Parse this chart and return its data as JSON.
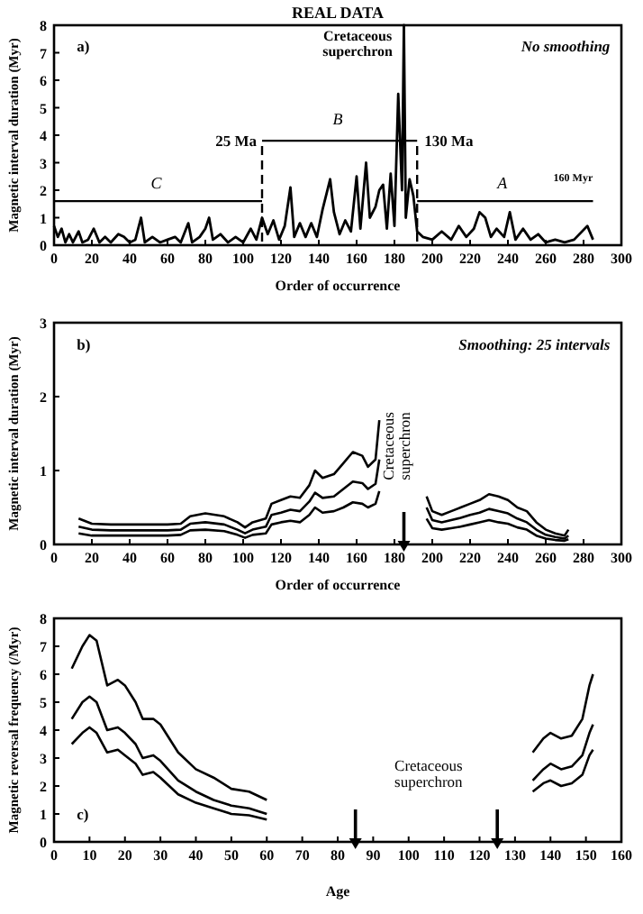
{
  "chart_data": [
    {
      "type": "line",
      "title": "REAL DATA",
      "xlabel": "Order of occurrence",
      "ylabel": "Magnetic interval duration (Myr)",
      "xlim": [
        0,
        300
      ],
      "xticks": [
        0,
        20,
        40,
        60,
        80,
        100,
        120,
        140,
        160,
        180,
        200,
        220,
        240,
        260,
        280,
        300
      ],
      "ylim": [
        0,
        8
      ],
      "yticks": [
        0,
        1,
        2,
        3,
        4,
        5,
        6,
        7,
        8
      ],
      "grid": false,
      "x": [
        0,
        2,
        4,
        6,
        8,
        10,
        13,
        15,
        18,
        21,
        24,
        27,
        30,
        34,
        37,
        40,
        43,
        46,
        48,
        52,
        56,
        60,
        64,
        67,
        71,
        73,
        77,
        80,
        82,
        84,
        88,
        92,
        96,
        100,
        104,
        107,
        110,
        113,
        116,
        119,
        122,
        125,
        127,
        130,
        133,
        136,
        139,
        142,
        146,
        148,
        151,
        154,
        157,
        160,
        162,
        165,
        167,
        170,
        172,
        174,
        176,
        178,
        180,
        182,
        184,
        185,
        186,
        188,
        190,
        192,
        195,
        200,
        205,
        210,
        214,
        218,
        222,
        225,
        228,
        231,
        234,
        238,
        241,
        244,
        248,
        252,
        256,
        260,
        265,
        270,
        275,
        282,
        285
      ],
      "series": [
        {
          "color": "#000000",
          "values": [
            0.7,
            0.3,
            0.6,
            0.1,
            0.4,
            0.1,
            0.5,
            0.1,
            0.2,
            0.6,
            0.1,
            0.3,
            0.1,
            0.4,
            0.3,
            0.1,
            0.2,
            1.0,
            0.1,
            0.3,
            0.1,
            0.2,
            0.3,
            0.1,
            0.8,
            0.1,
            0.3,
            0.6,
            1.0,
            0.2,
            0.4,
            0.1,
            0.3,
            0.1,
            0.6,
            0.2,
            1.0,
            0.4,
            0.9,
            0.2,
            0.7,
            2.1,
            0.3,
            0.8,
            0.3,
            0.8,
            0.3,
            1.3,
            2.4,
            1.2,
            0.4,
            0.9,
            0.5,
            2.5,
            0.6,
            3.0,
            1.0,
            1.4,
            2.0,
            2.2,
            0.6,
            2.6,
            0.7,
            5.5,
            2.0,
            8,
            1.0,
            2.4,
            1.8,
            0.5,
            0.3,
            0.2,
            0.5,
            0.2,
            0.7,
            0.3,
            0.6,
            1.2,
            1.0,
            0.3,
            0.6,
            0.3,
            1.2,
            0.2,
            0.6,
            0.2,
            0.4,
            0.1,
            0.2,
            0.1,
            0.2,
            0.7,
            0.2
          ]
        }
      ],
      "ref_lines": [
        {
          "axis": "x",
          "value": 110,
          "label": "25 Ma",
          "line_style": "dashed"
        },
        {
          "axis": "x",
          "value": 192,
          "label": "130 Ma",
          "line_style": "dashed"
        }
      ],
      "annotations": [
        "a)",
        "No smoothing",
        "C",
        "B",
        "A",
        "160 Myr",
        "Cretaceous superchron"
      ]
    },
    {
      "type": "line",
      "xlabel": "Order of occurrence",
      "ylabel": "Magnetic interval duration (Myr)",
      "xlim": [
        0,
        300
      ],
      "xticks": [
        0,
        20,
        40,
        60,
        80,
        100,
        120,
        140,
        160,
        180,
        200,
        220,
        240,
        260,
        280,
        300
      ],
      "ylim": [
        0,
        3
      ],
      "yticks": [
        0,
        1,
        2,
        3
      ],
      "grid": false,
      "x": [
        13,
        20,
        30,
        40,
        50,
        60,
        67,
        72,
        80,
        90,
        97,
        101,
        105,
        112,
        115,
        120,
        125,
        130,
        135,
        138,
        142,
        148,
        153,
        158,
        163,
        166,
        170,
        172,
        185,
        197,
        200,
        205,
        210,
        215,
        220,
        225,
        230,
        235,
        240,
        245,
        250,
        255,
        260,
        265,
        270,
        272
      ],
      "series": [
        {
          "color": "#000000",
          "values": [
            0.35,
            0.28,
            0.27,
            0.27,
            0.27,
            0.27,
            0.28,
            0.38,
            0.42,
            0.38,
            0.3,
            0.23,
            0.3,
            0.35,
            0.55,
            0.6,
            0.65,
            0.63,
            0.8,
            1.0,
            0.9,
            0.95,
            1.1,
            1.25,
            1.2,
            1.05,
            1.15,
            1.68,
            null,
            0.65,
            0.45,
            0.4,
            0.45,
            0.5,
            0.55,
            0.6,
            0.68,
            0.65,
            0.6,
            0.5,
            0.45,
            0.3,
            0.2,
            0.15,
            0.12,
            0.2
          ]
        },
        {
          "color": "#000000",
          "values": [
            0.24,
            0.2,
            0.19,
            0.19,
            0.19,
            0.19,
            0.2,
            0.28,
            0.3,
            0.27,
            0.2,
            0.15,
            0.2,
            0.24,
            0.4,
            0.43,
            0.47,
            0.45,
            0.58,
            0.7,
            0.63,
            0.65,
            0.75,
            0.85,
            0.83,
            0.75,
            0.82,
            1.15,
            null,
            0.5,
            0.33,
            0.3,
            0.33,
            0.36,
            0.4,
            0.43,
            0.48,
            0.45,
            0.42,
            0.35,
            0.3,
            0.2,
            0.13,
            0.1,
            0.08,
            0.12
          ]
        },
        {
          "color": "#000000",
          "values": [
            0.15,
            0.12,
            0.12,
            0.12,
            0.12,
            0.12,
            0.13,
            0.19,
            0.2,
            0.18,
            0.13,
            0.09,
            0.13,
            0.15,
            0.27,
            0.3,
            0.32,
            0.3,
            0.4,
            0.5,
            0.43,
            0.45,
            0.5,
            0.57,
            0.55,
            0.5,
            0.55,
            0.72,
            null,
            0.35,
            0.22,
            0.2,
            0.22,
            0.24,
            0.27,
            0.3,
            0.33,
            0.3,
            0.28,
            0.23,
            0.2,
            0.12,
            0.08,
            0.06,
            0.05,
            0.07
          ]
        }
      ],
      "ref_lines": [
        {
          "axis": "x",
          "value": 185
        }
      ],
      "annotations": [
        "b)",
        "Smoothing: 25 intervals",
        "Cretaceous superchron"
      ]
    },
    {
      "type": "line",
      "xlabel": "Age",
      "ylabel": "Magnetic reversal frequency (/Myr)",
      "xlim": [
        0,
        160
      ],
      "xticks": [
        0,
        10,
        20,
        30,
        40,
        50,
        60,
        70,
        80,
        90,
        100,
        110,
        120,
        130,
        140,
        150,
        160
      ],
      "ylim": [
        0,
        8
      ],
      "yticks": [
        0,
        1,
        2,
        3,
        4,
        5,
        6,
        7,
        8
      ],
      "grid": false,
      "x": [
        5,
        8,
        10,
        12,
        15,
        18,
        20,
        23,
        25,
        28,
        30,
        35,
        40,
        45,
        50,
        55,
        60,
        100,
        135,
        138,
        140,
        143,
        146,
        149,
        151,
        152
      ],
      "series": [
        {
          "color": "#000000",
          "values": [
            6.2,
            7.0,
            7.4,
            7.2,
            5.6,
            5.8,
            5.6,
            5.0,
            4.4,
            4.4,
            4.2,
            3.2,
            2.6,
            2.3,
            1.9,
            1.8,
            1.5,
            null,
            3.2,
            3.7,
            3.9,
            3.7,
            3.8,
            4.4,
            5.6,
            6.0
          ]
        },
        {
          "color": "#000000",
          "values": [
            4.4,
            5.0,
            5.2,
            5.0,
            4.0,
            4.1,
            3.9,
            3.5,
            3.0,
            3.1,
            2.9,
            2.2,
            1.8,
            1.5,
            1.3,
            1.2,
            1.0,
            null,
            2.2,
            2.6,
            2.8,
            2.6,
            2.7,
            3.1,
            3.9,
            4.2
          ]
        },
        {
          "color": "#000000",
          "values": [
            3.5,
            3.9,
            4.1,
            3.9,
            3.2,
            3.3,
            3.1,
            2.8,
            2.4,
            2.5,
            2.3,
            1.7,
            1.4,
            1.2,
            1.0,
            0.95,
            0.8,
            null,
            1.8,
            2.1,
            2.2,
            2.0,
            2.1,
            2.4,
            3.1,
            3.3
          ]
        }
      ],
      "ref_lines": [
        {
          "axis": "x",
          "value": 85
        },
        {
          "axis": "x",
          "value": 125
        }
      ],
      "annotations": [
        "c)",
        "Cretaceous superchron"
      ]
    }
  ]
}
